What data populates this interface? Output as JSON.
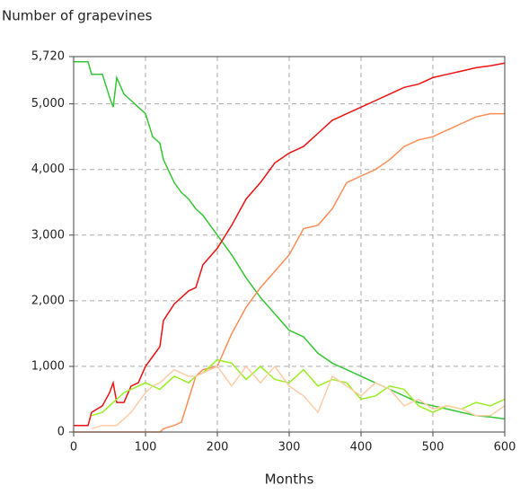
{
  "chart_data": {
    "type": "line",
    "title": "Number of grapevines",
    "x_label": "Months",
    "x": [
      0,
      20,
      25,
      40,
      50,
      55,
      60,
      70,
      80,
      90,
      100,
      110,
      120,
      125,
      140,
      150,
      160,
      170,
      180,
      200,
      220,
      240,
      260,
      280,
      300,
      320,
      340,
      360,
      380,
      400,
      420,
      440,
      460,
      480,
      500,
      520,
      540,
      560,
      580,
      600
    ],
    "series": [
      {
        "color": "#33c633",
        "values": [
          5640,
          5640,
          5450,
          5450,
          5100,
          4950,
          5400,
          5150,
          5050,
          4950,
          4850,
          4500,
          4400,
          4150,
          3800,
          3650,
          3550,
          3400,
          3300,
          3000,
          2700,
          2350,
          2050,
          1800,
          1550,
          1450,
          1200,
          1050,
          950,
          850,
          750,
          650,
          550,
          450,
          400,
          350,
          300,
          250,
          230,
          200
        ]
      },
      {
        "color": "#ee1111",
        "values": [
          100,
          100,
          300,
          400,
          600,
          750,
          450,
          450,
          700,
          750,
          1000,
          1150,
          1300,
          1700,
          1950,
          2050,
          2150,
          2200,
          2550,
          2800,
          3150,
          3550,
          3800,
          4100,
          4250,
          4350,
          4550,
          4750,
          4850,
          4950,
          5050,
          5150,
          5250,
          5300,
          5400,
          5450,
          5500,
          5550,
          5580,
          5620
        ]
      },
      {
        "color": "#ff8c55",
        "values": [
          0,
          0,
          0,
          0,
          0,
          0,
          0,
          0,
          0,
          0,
          0,
          0,
          0,
          50,
          100,
          150,
          500,
          850,
          950,
          1000,
          1500,
          1900,
          2200,
          2450,
          2700,
          3100,
          3150,
          3400,
          3800,
          3900,
          4000,
          4150,
          4350,
          4450,
          4500,
          4600,
          4700,
          4800,
          4850,
          4850
        ]
      },
      {
        "color": "#99ee22",
        "values": [
          null,
          null,
          250,
          300,
          400,
          450,
          500,
          600,
          650,
          700,
          750,
          700,
          650,
          700,
          850,
          800,
          750,
          850,
          900,
          1100,
          1050,
          800,
          1000,
          800,
          750,
          950,
          700,
          800,
          750,
          500,
          550,
          700,
          650,
          400,
          300,
          400,
          350,
          450,
          400,
          500
        ]
      },
      {
        "color": "#ffcca8",
        "values": [
          null,
          null,
          50,
          100,
          100,
          100,
          100,
          200,
          300,
          450,
          600,
          700,
          750,
          800,
          950,
          900,
          850,
          850,
          900,
          1000,
          700,
          1000,
          750,
          1000,
          700,
          550,
          300,
          850,
          700,
          550,
          750,
          650,
          400,
          500,
          350,
          400,
          350,
          250,
          250,
          400
        ]
      }
    ],
    "xlim": [
      0,
      600
    ],
    "xticks": [
      0,
      100,
      200,
      300,
      400,
      500,
      600
    ],
    "ylim": [
      0,
      5720
    ],
    "yticks": [
      0,
      {
        "value": 1000,
        "label": "1,000"
      },
      {
        "value": 2000,
        "label": "2,000"
      },
      {
        "value": 3000,
        "label": "3,000"
      },
      {
        "value": 4000,
        "label": "4,000"
      },
      {
        "value": 5000,
        "label": "5,000"
      },
      {
        "value": 5720,
        "label": "5,720"
      }
    ],
    "grid": true
  }
}
